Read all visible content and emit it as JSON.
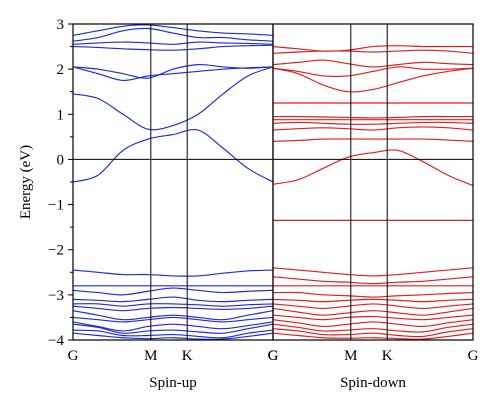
{
  "chart_data": {
    "type": "line",
    "ylabel": "Energy (eV)",
    "ylim": [
      -4,
      3
    ],
    "y_ticks": [
      "3",
      "2",
      "1",
      "0",
      "−1",
      "−2",
      "−3",
      "−4"
    ],
    "k_path": [
      0,
      0.389,
      0.571,
      1.0
    ],
    "grid": false,
    "panels": [
      {
        "label": "Spin-up",
        "color": "#1f2bd6",
        "x_tick_labels": [
          "G",
          "M",
          "K",
          "G"
        ],
        "bands": [
          [
            -0.5,
            -0.35,
            0.2,
            0.45,
            0.55,
            0.65,
            0.25,
            -0.2,
            -0.5
          ],
          [
            1.45,
            1.35,
            1.0,
            0.67,
            0.75,
            1.0,
            1.45,
            1.85,
            2.05
          ],
          [
            2.05,
            2.0,
            1.9,
            1.8,
            2.0,
            2.1,
            2.05,
            2.02,
            2.05
          ],
          [
            2.05,
            1.9,
            1.75,
            1.85,
            1.9,
            1.95,
            2.0,
            2.03,
            2.05
          ],
          [
            2.5,
            2.48,
            2.45,
            2.43,
            2.42,
            2.45,
            2.5,
            2.52,
            2.53
          ],
          [
            2.55,
            2.58,
            2.6,
            2.58,
            2.55,
            2.6,
            2.58,
            2.57,
            2.55
          ],
          [
            2.62,
            2.7,
            2.85,
            2.9,
            2.8,
            2.7,
            2.7,
            2.65,
            2.62
          ],
          [
            2.75,
            2.85,
            2.95,
            2.98,
            2.92,
            2.85,
            2.8,
            2.78,
            2.75
          ],
          [
            -2.45,
            -2.5,
            -2.55,
            -2.55,
            -2.58,
            -2.58,
            -2.52,
            -2.47,
            -2.45
          ],
          [
            -2.8,
            -2.8,
            -2.8,
            -2.8,
            -2.8,
            -2.8,
            -2.8,
            -2.8,
            -2.8
          ],
          [
            -2.9,
            -2.95,
            -3.0,
            -2.92,
            -2.85,
            -2.9,
            -2.95,
            -2.92,
            -2.9
          ],
          [
            -3.1,
            -3.12,
            -3.15,
            -3.1,
            -3.05,
            -3.12,
            -3.15,
            -3.12,
            -3.1
          ],
          [
            -3.2,
            -3.2,
            -3.25,
            -3.2,
            -3.2,
            -3.22,
            -3.25,
            -3.22,
            -3.2
          ],
          [
            -3.25,
            -3.3,
            -3.35,
            -3.3,
            -3.28,
            -3.3,
            -3.32,
            -3.3,
            -3.25
          ],
          [
            -3.35,
            -3.45,
            -3.55,
            -3.5,
            -3.45,
            -3.5,
            -3.55,
            -3.45,
            -3.35
          ],
          [
            -3.5,
            -3.55,
            -3.6,
            -3.55,
            -3.5,
            -3.55,
            -3.6,
            -3.55,
            -3.5
          ],
          [
            -3.6,
            -3.7,
            -3.8,
            -3.7,
            -3.65,
            -3.7,
            -3.75,
            -3.68,
            -3.6
          ],
          [
            -3.65,
            -3.72,
            -3.85,
            -3.8,
            -3.78,
            -3.82,
            -3.85,
            -3.75,
            -3.65
          ],
          [
            -3.78,
            -3.8,
            -3.9,
            -3.9,
            -3.88,
            -3.92,
            -3.95,
            -3.85,
            -3.78
          ],
          [
            -3.85,
            -3.9,
            -3.95,
            -3.97,
            -3.95,
            -3.98,
            -3.98,
            -3.92,
            -3.85
          ]
        ]
      },
      {
        "label": "Spin-down",
        "color": "#e01e1e",
        "x_tick_labels": [
          "G",
          "M",
          "K",
          "G"
        ],
        "bands": [
          [
            -0.55,
            -0.45,
            -0.2,
            0.05,
            0.15,
            0.2,
            -0.05,
            -0.35,
            -0.58
          ],
          [
            0.4,
            0.42,
            0.45,
            0.45,
            0.45,
            0.45,
            0.45,
            0.43,
            0.4
          ],
          [
            0.65,
            0.68,
            0.7,
            0.68,
            0.65,
            0.7,
            0.72,
            0.7,
            0.65
          ],
          [
            0.8,
            0.82,
            0.8,
            0.78,
            0.78,
            0.8,
            0.82,
            0.82,
            0.8
          ],
          [
            0.88,
            0.88,
            0.88,
            0.88,
            0.88,
            0.88,
            0.88,
            0.88,
            0.88
          ],
          [
            0.95,
            0.95,
            0.94,
            0.93,
            0.92,
            0.93,
            0.95,
            0.95,
            0.95
          ],
          [
            1.25,
            1.25,
            1.25,
            1.25,
            1.25,
            1.25,
            1.25,
            1.25,
            1.25
          ],
          [
            2.02,
            1.9,
            1.65,
            1.5,
            1.55,
            1.7,
            1.85,
            1.95,
            2.02
          ],
          [
            2.02,
            1.95,
            1.85,
            1.85,
            1.95,
            2.05,
            2.0,
            2.0,
            2.02
          ],
          [
            2.1,
            2.15,
            2.2,
            2.12,
            2.05,
            2.1,
            2.15,
            2.12,
            2.1
          ],
          [
            2.35,
            2.38,
            2.4,
            2.4,
            2.38,
            2.4,
            2.42,
            2.4,
            2.35
          ],
          [
            2.5,
            2.45,
            2.4,
            2.42,
            2.5,
            2.52,
            2.5,
            2.5,
            2.5
          ],
          [
            -1.35,
            -1.35,
            -1.35,
            -1.35,
            -1.35,
            -1.35,
            -1.35,
            -1.35,
            -1.35
          ],
          [
            -2.4,
            -2.45,
            -2.5,
            -2.55,
            -2.58,
            -2.55,
            -2.5,
            -2.45,
            -2.4
          ],
          [
            -2.6,
            -2.65,
            -2.7,
            -2.72,
            -2.75,
            -2.72,
            -2.7,
            -2.65,
            -2.6
          ],
          [
            -2.8,
            -2.8,
            -2.8,
            -2.8,
            -2.8,
            -2.8,
            -2.8,
            -2.8,
            -2.8
          ],
          [
            -2.95,
            -2.95,
            -3.0,
            -3.02,
            -3.05,
            -3.02,
            -3.0,
            -2.97,
            -2.95
          ],
          [
            -3.1,
            -3.12,
            -3.15,
            -3.12,
            -3.1,
            -3.12,
            -3.15,
            -3.12,
            -3.1
          ],
          [
            -3.2,
            -3.25,
            -3.3,
            -3.25,
            -3.2,
            -3.25,
            -3.3,
            -3.25,
            -3.2
          ],
          [
            -3.3,
            -3.38,
            -3.45,
            -3.4,
            -3.35,
            -3.4,
            -3.45,
            -3.38,
            -3.3
          ],
          [
            -3.45,
            -3.5,
            -3.55,
            -3.5,
            -3.48,
            -3.52,
            -3.55,
            -3.5,
            -3.45
          ],
          [
            -3.55,
            -3.62,
            -3.7,
            -3.65,
            -3.6,
            -3.65,
            -3.7,
            -3.62,
            -3.55
          ],
          [
            -3.65,
            -3.72,
            -3.8,
            -3.78,
            -3.75,
            -3.8,
            -3.82,
            -3.72,
            -3.65
          ],
          [
            -3.75,
            -3.8,
            -3.88,
            -3.88,
            -3.85,
            -3.9,
            -3.92,
            -3.82,
            -3.75
          ],
          [
            -3.85,
            -3.9,
            -3.95,
            -3.96,
            -3.95,
            -3.97,
            -3.98,
            -3.92,
            -3.85
          ]
        ]
      }
    ]
  }
}
